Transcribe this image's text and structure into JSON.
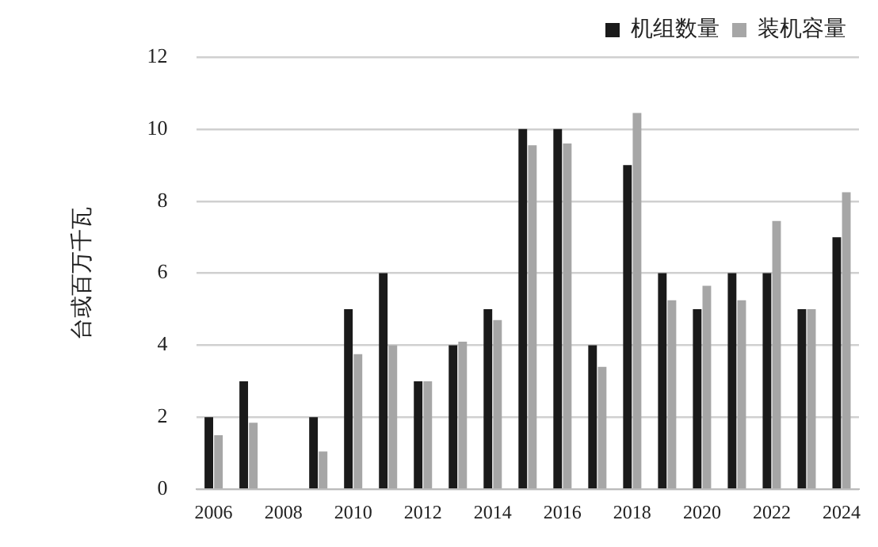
{
  "chart_data": {
    "type": "bar",
    "ylabel": "台或百万千瓦",
    "categories": [
      "2006",
      null,
      "2008",
      null,
      "2010",
      null,
      "2012",
      null,
      "2014",
      null,
      "2016",
      null,
      "2018",
      null,
      "2020",
      null,
      "2022",
      null,
      "2024"
    ],
    "series": [
      {
        "name": "机组数量",
        "color": "#1a1a1a",
        "values": [
          2,
          3,
          0,
          2,
          5,
          6,
          3,
          4,
          5,
          10,
          10,
          4,
          9,
          6,
          5,
          6,
          6,
          5,
          7
        ]
      },
      {
        "name": "装机容量",
        "color": "#a6a6a6",
        "values": [
          1.5,
          1.85,
          0,
          1.05,
          3.75,
          4.0,
          3.0,
          4.1,
          4.7,
          9.55,
          9.6,
          3.4,
          10.45,
          5.25,
          5.65,
          5.25,
          7.45,
          5.0,
          8.25
        ]
      }
    ],
    "ylim": [
      0,
      12
    ],
    "yticks": [
      0,
      2,
      4,
      6,
      8,
      10,
      12
    ],
    "grid": "y",
    "legend": "top right"
  }
}
